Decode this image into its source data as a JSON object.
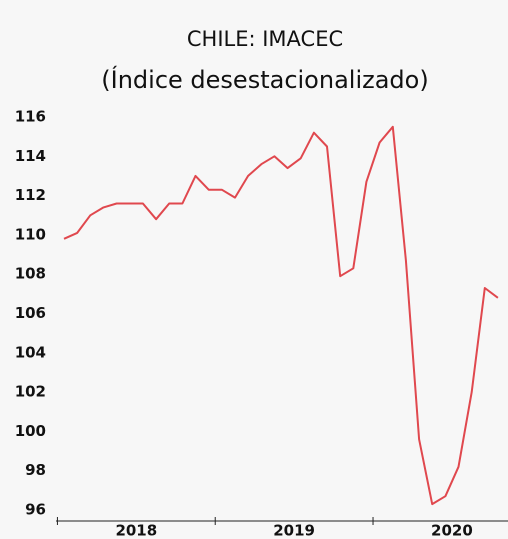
{
  "chart_data": {
    "type": "line",
    "title": "CHILE: IMACEC",
    "subtitle": "(Índice desestacionalizado)",
    "categories": [
      null,
      null,
      null,
      null,
      null,
      null,
      "2018",
      null,
      null,
      null,
      null,
      null,
      null,
      null,
      null,
      null,
      null,
      null,
      "2019",
      null,
      null,
      null,
      null,
      null,
      null,
      null,
      null,
      null,
      null,
      null,
      "2020",
      null,
      null,
      null
    ],
    "series": [
      {
        "name": "IMACEC",
        "color": "#e0484e",
        "values": [
          109.8,
          110.1,
          111.0,
          111.4,
          111.6,
          111.6,
          111.6,
          110.8,
          111.6,
          111.6,
          113.0,
          112.3,
          112.3,
          111.9,
          113.0,
          113.6,
          114.0,
          113.4,
          113.9,
          115.2,
          114.5,
          107.9,
          108.3,
          112.7,
          114.7,
          115.5,
          108.7,
          99.6,
          96.3,
          96.7,
          98.2,
          102.0,
          107.3,
          106.8
        ]
      }
    ],
    "ylim": [
      96,
      116
    ],
    "yticks": [
      96,
      98,
      100,
      102,
      104,
      106,
      108,
      110,
      112,
      114,
      116
    ],
    "grid": false
  }
}
